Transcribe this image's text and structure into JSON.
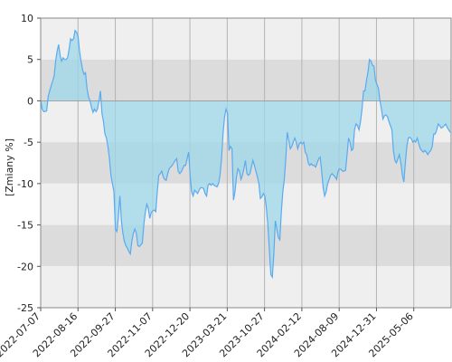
{
  "chart_data": {
    "type": "area",
    "title": "",
    "ylabel": "[Zmiany %]",
    "xlabel": "",
    "ylim": [
      -25,
      10
    ],
    "yticks": [
      10,
      5,
      0,
      -5,
      -10,
      -15,
      -20,
      -25
    ],
    "xticks": [
      "2022-07-07",
      "2022-08-16",
      "2022-09-27",
      "2022-11-07",
      "2022-12-20",
      "2023-03-21",
      "2023-10-27",
      "2024-02-12",
      "2024-08-09",
      "2024-12-31",
      "2025-05-06"
    ],
    "grid": true,
    "legend": "none",
    "colors": {
      "line": "#5aaaf0",
      "fill": "#9dd7e8",
      "band_light": "#efefef",
      "band_dark": "#dcdcdc",
      "grid": "#b4b4b4",
      "zero_line": "#999999"
    },
    "series": [
      {
        "x_index_note": "",
        "values": [
          0,
          -1,
          -1.3,
          -1.3,
          -1.2,
          0.5,
          1.2,
          1.8,
          2.4,
          3,
          4.8,
          6,
          6.8,
          5.5,
          4.8,
          5.2,
          5,
          5,
          5.2,
          6.2,
          7.5,
          7.3,
          7.5,
          8.5,
          8.3,
          7.8,
          6,
          4.8,
          3.8,
          3.2,
          3.4,
          1.5,
          0.5,
          0,
          -0.8,
          -1.4,
          -1,
          -1.3,
          -1,
          0,
          1.2,
          -1.5,
          -2.5,
          -4,
          -4.5,
          -5.5,
          -7,
          -9,
          -10,
          -11,
          -15.5,
          -15.8,
          -14,
          -11.5,
          -14.5,
          -16,
          -17,
          -17.5,
          -17.8,
          -18.2,
          -18.5,
          -17,
          -16,
          -15.5,
          -16,
          -17.5,
          -17.6,
          -17.4,
          -17.2,
          -15,
          -13.5,
          -12.5,
          -13,
          -14.2,
          -13.5,
          -13.3,
          -13.2,
          -13.4,
          -11,
          -9,
          -8.8,
          -8.5,
          -9.2,
          -9.5,
          -9.6,
          -8.8,
          -8.2,
          -8,
          -7.8,
          -7.5,
          -7.2,
          -7,
          -8.5,
          -8.8,
          -8.6,
          -8.2,
          -7.8,
          -7.8,
          -7,
          -6.2,
          -9,
          -11,
          -11.5,
          -10.8,
          -11,
          -11.2,
          -10.8,
          -10.5,
          -10.5,
          -10.6,
          -11.2,
          -11.5,
          -10.2,
          -10,
          -10.2,
          -10,
          -10.2,
          -10.3,
          -10.4,
          -10,
          -9,
          -7,
          -4,
          -2,
          -1,
          -1.5,
          -6,
          -5.5,
          -5.8,
          -12,
          -11,
          -9.2,
          -8.2,
          -8.5,
          -9.5,
          -9,
          -8.2,
          -7.2,
          -8.8,
          -9,
          -8.8,
          -8,
          -7.2,
          -7.8,
          -8.5,
          -9.2,
          -10,
          -11.8,
          -11.6,
          -11.2,
          -11.5,
          -13,
          -15,
          -18,
          -21,
          -21.3,
          -18.5,
          -14.5,
          -15.5,
          -16.5,
          -16.8,
          -13.5,
          -11,
          -9.5,
          -7,
          -3.8,
          -4.8,
          -5.8,
          -5.5,
          -5,
          -4.5,
          -5,
          -5.8,
          -5.2,
          -5,
          -5.2,
          -5,
          -6.2,
          -6.5,
          -7.5,
          -7.8,
          -7.6,
          -7.8,
          -7.8,
          -8,
          -7.5,
          -7,
          -6.8,
          -8.5,
          -10.5,
          -11.5,
          -11,
          -10,
          -9.5,
          -9,
          -8.8,
          -9,
          -9.2,
          -9.5,
          -8.5,
          -8.2,
          -8.3,
          -8.5,
          -8.5,
          -8.4,
          -6.5,
          -4.5,
          -5,
          -6,
          -5.8,
          -3.5,
          -2.8,
          -3,
          -3.5,
          -2.5,
          -1,
          1.2,
          1.2,
          2.5,
          3.5,
          5,
          4.8,
          4.3,
          4.2,
          2.5,
          2,
          1.5,
          0,
          -1,
          -2.2,
          -1.8,
          -1.7,
          -1.9,
          -2.5,
          -3,
          -3.5,
          -6,
          -7.2,
          -7.5,
          -7,
          -6.5,
          -7.5,
          -9,
          -9.8,
          -7.5,
          -5.5,
          -4.5,
          -4.4,
          -4.6,
          -5,
          -4.8,
          -5,
          -4.5,
          -5.2,
          -5.8,
          -6,
          -6.2,
          -6,
          -6.2,
          -6.5,
          -6.2,
          -6,
          -5.5,
          -4,
          -4,
          -3.5,
          -2.8,
          -3,
          -3.3,
          -3.2,
          -3,
          -2.8,
          -3.2,
          -3.5,
          -3.8
        ]
      }
    ]
  }
}
